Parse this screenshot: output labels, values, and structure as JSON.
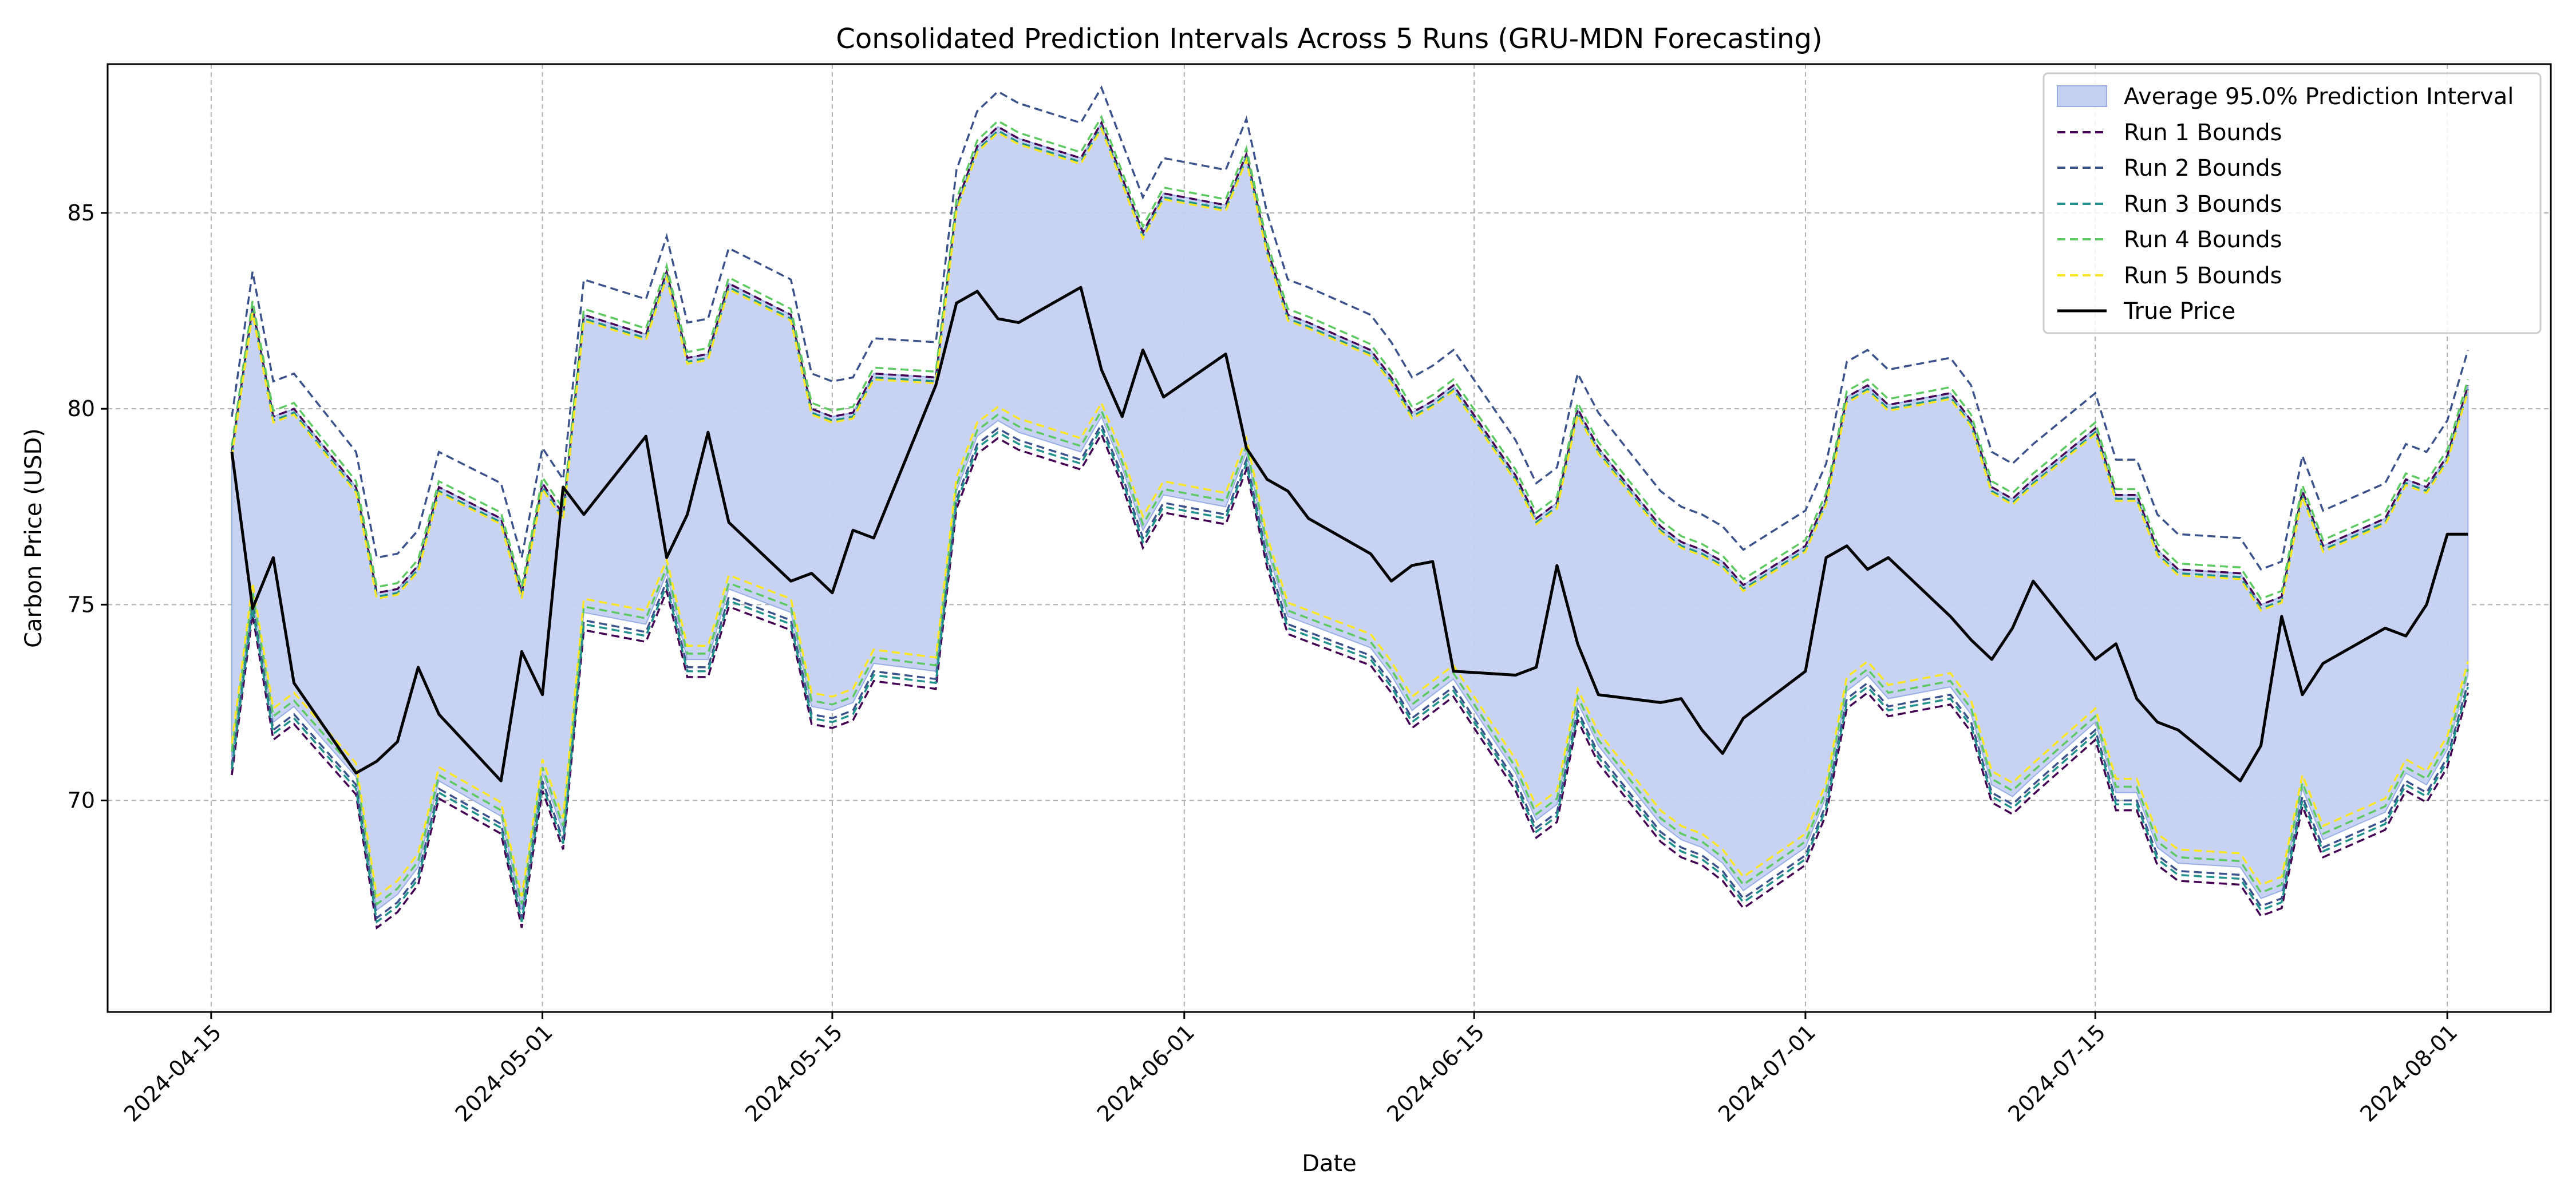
{
  "chart_data": {
    "type": "line",
    "title": "Consolidated Prediction Intervals Across 5 Runs (GRU-MDN Forecasting)",
    "xlabel": "Date",
    "ylabel": "Carbon Price (USD)",
    "xlim": [
      "2024-04-10",
      "2024-08-06"
    ],
    "ylim": [
      64.6,
      88.8
    ],
    "x_ticks": [
      "2024-04-15",
      "2024-05-01",
      "2024-05-15",
      "2024-06-01",
      "2024-06-15",
      "2024-07-01",
      "2024-07-15",
      "2024-08-01"
    ],
    "y_ticks": [
      70,
      75,
      80,
      85
    ],
    "grid": true,
    "legend_position": "top-right",
    "colors": {
      "band": "#c5d1f3",
      "band_edge": "#9aaee6",
      "true_price": "#000000",
      "runs": [
        "#440154",
        "#3b528b",
        "#21918c",
        "#5ec962",
        "#fde725"
      ]
    },
    "band_label": "Average 95.0% Prediction Interval",
    "true_price_label": "True Price",
    "run_labels": [
      "Run 1 Bounds",
      "Run 2 Bounds",
      "Run 3 Bounds",
      "Run 4 Bounds",
      "Run 5 Bounds"
    ],
    "dates": [
      "2024-04-16",
      "2024-04-17",
      "2024-04-18",
      "2024-04-19",
      "2024-04-22",
      "2024-04-23",
      "2024-04-24",
      "2024-04-25",
      "2024-04-26",
      "2024-04-29",
      "2024-04-30",
      "2024-05-01",
      "2024-05-02",
      "2024-05-03",
      "2024-05-06",
      "2024-05-07",
      "2024-05-08",
      "2024-05-09",
      "2024-05-10",
      "2024-05-13",
      "2024-05-14",
      "2024-05-15",
      "2024-05-16",
      "2024-05-17",
      "2024-05-20",
      "2024-05-21",
      "2024-05-22",
      "2024-05-23",
      "2024-05-24",
      "2024-05-27",
      "2024-05-28",
      "2024-05-29",
      "2024-05-30",
      "2024-05-31",
      "2024-06-03",
      "2024-06-04",
      "2024-06-05",
      "2024-06-06",
      "2024-06-07",
      "2024-06-10",
      "2024-06-11",
      "2024-06-12",
      "2024-06-13",
      "2024-06-14",
      "2024-06-17",
      "2024-06-18",
      "2024-06-19",
      "2024-06-20",
      "2024-06-21",
      "2024-06-24",
      "2024-06-25",
      "2024-06-26",
      "2024-06-27",
      "2024-06-28",
      "2024-07-01",
      "2024-07-02",
      "2024-07-03",
      "2024-07-04",
      "2024-07-05",
      "2024-07-08",
      "2024-07-09",
      "2024-07-10",
      "2024-07-11",
      "2024-07-12",
      "2024-07-15",
      "2024-07-16",
      "2024-07-17",
      "2024-07-18",
      "2024-07-19",
      "2024-07-22",
      "2024-07-23",
      "2024-07-24",
      "2024-07-25",
      "2024-07-26",
      "2024-07-29",
      "2024-07-30",
      "2024-07-31",
      "2024-08-01",
      "2024-08-02"
    ],
    "true_price": [
      78.9,
      74.9,
      76.2,
      73.0,
      70.7,
      71.0,
      71.5,
      73.4,
      72.2,
      70.5,
      73.8,
      72.7,
      78.0,
      77.3,
      79.3,
      76.2,
      77.3,
      79.4,
      77.1,
      75.6,
      75.8,
      75.3,
      76.9,
      76.7,
      80.6,
      82.7,
      83.0,
      82.3,
      82.2,
      83.1,
      81.0,
      79.8,
      81.5,
      80.3,
      81.4,
      79.0,
      78.2,
      77.9,
      77.2,
      76.3,
      75.6,
      76.0,
      76.1,
      73.3,
      73.2,
      73.4,
      76.0,
      74.0,
      72.7,
      72.5,
      72.6,
      71.8,
      71.2,
      72.1,
      73.3,
      76.2,
      76.5,
      75.9,
      76.2,
      74.7,
      74.1,
      73.6,
      74.4,
      75.6,
      73.6,
      74.0,
      72.6,
      72.0,
      71.8,
      70.5,
      71.4,
      74.7,
      72.7,
      73.5,
      74.4,
      74.2,
      75.0,
      76.8,
      76.8
    ],
    "avg_upper": [
      78.9,
      82.6,
      79.8,
      80.0,
      78.0,
      75.3,
      75.4,
      76.0,
      78.0,
      77.2,
      75.3,
      78.1,
      77.3,
      82.4,
      81.9,
      83.5,
      81.3,
      81.4,
      83.2,
      82.4,
      80.0,
      79.8,
      79.9,
      80.9,
      80.8,
      85.2,
      86.7,
      87.2,
      86.9,
      86.4,
      87.3,
      85.9,
      84.5,
      85.5,
      85.2,
      86.5,
      84.1,
      82.4,
      82.2,
      81.5,
      80.8,
      79.9,
      80.2,
      80.6,
      78.3,
      77.2,
      77.6,
      80.0,
      79.0,
      77.0,
      76.6,
      76.4,
      76.1,
      75.5,
      76.5,
      77.7,
      80.3,
      80.6,
      80.1,
      80.4,
      79.7,
      78.0,
      77.7,
      78.2,
      79.5,
      77.8,
      77.8,
      76.4,
      75.9,
      75.8,
      75.0,
      75.2,
      77.9,
      76.5,
      77.2,
      78.2,
      78.0,
      78.8,
      80.6
    ],
    "avg_lower": [
      71.1,
      75.2,
      72.0,
      72.4,
      70.6,
      67.2,
      67.6,
      68.3,
      70.5,
      69.6,
      67.2,
      70.7,
      69.2,
      74.8,
      74.5,
      75.8,
      73.6,
      73.6,
      75.4,
      74.8,
      72.4,
      72.3,
      72.5,
      73.5,
      73.3,
      77.9,
      79.3,
      79.7,
      79.4,
      78.9,
      79.8,
      78.5,
      76.9,
      77.8,
      77.5,
      78.9,
      76.4,
      74.7,
      74.5,
      73.9,
      73.2,
      72.3,
      72.7,
      73.1,
      70.7,
      69.5,
      69.9,
      72.5,
      71.4,
      69.4,
      69.0,
      68.8,
      68.4,
      67.7,
      68.8,
      70.1,
      72.8,
      73.2,
      72.6,
      72.9,
      72.2,
      70.4,
      70.1,
      70.6,
      72.0,
      70.2,
      70.2,
      68.8,
      68.4,
      68.3,
      67.5,
      67.7,
      70.3,
      69.0,
      69.7,
      70.7,
      70.4,
      71.3,
      73.2
    ],
    "run_upper_offsets": [
      0,
      0.9,
      -0.1,
      0.15,
      -0.15
    ],
    "run_lower_offsets": [
      -0.45,
      -0.2,
      -0.3,
      0.15,
      0.35
    ]
  }
}
